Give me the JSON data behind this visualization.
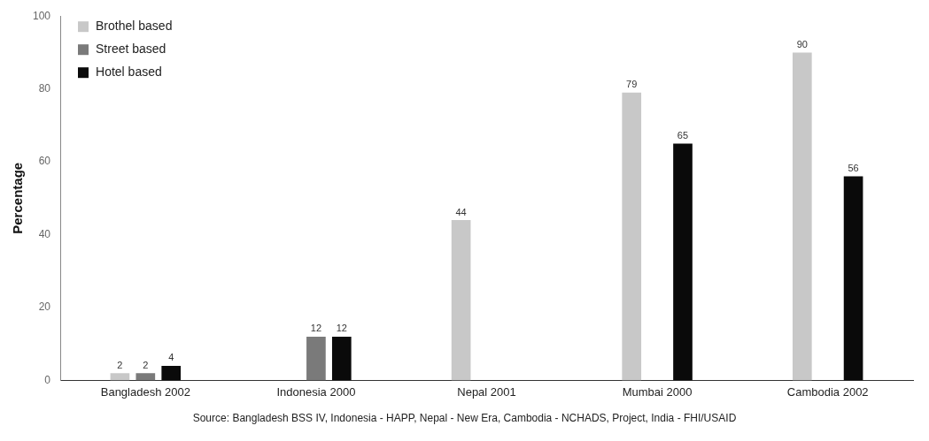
{
  "chart_data": {
    "type": "bar",
    "ylabel": "Percentage",
    "categories": [
      "Bangladesh 2002",
      "Indonesia 2000",
      "Nepal 2001",
      "Mumbai 2000",
      "Cambodia 2002"
    ],
    "series": [
      {
        "name": "Brothel based",
        "color": "#c8c8c8",
        "values": [
          2,
          null,
          44,
          79,
          90
        ]
      },
      {
        "name": "Street based",
        "color": "#7a7a7a",
        "values": [
          2,
          12,
          null,
          null,
          null
        ]
      },
      {
        "name": "Hotel based",
        "color": "#0a0a0a",
        "values": [
          4,
          12,
          null,
          65,
          56
        ]
      }
    ],
    "ylim": [
      0,
      100
    ],
    "yticks": [
      0,
      20,
      40,
      60,
      80,
      100
    ],
    "grid": false,
    "legend": "top left",
    "data_labels": true,
    "annotations": [
      "Source: Bangladesh BSS IV, Indonesia - HAPP, Nepal - New Era, Cambodia - NCHADS, Project, India - FHI/USAID"
    ]
  }
}
